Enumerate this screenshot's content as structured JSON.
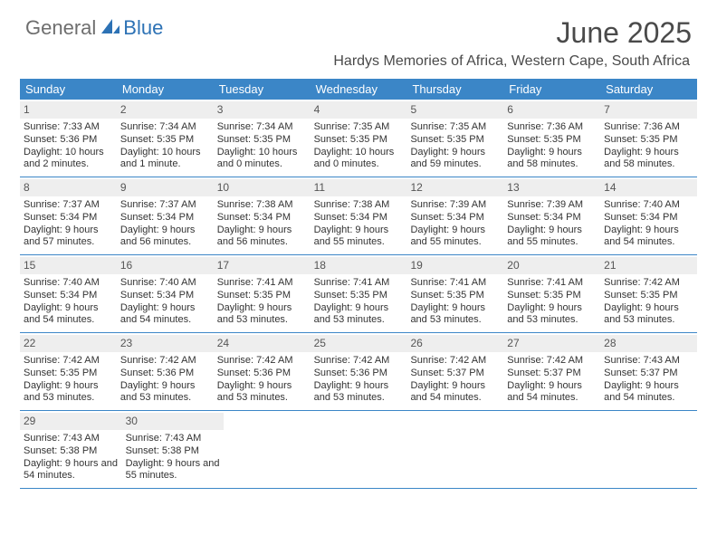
{
  "logo": {
    "general": "General",
    "blue": "Blue"
  },
  "title": "June 2025",
  "location": "Hardys Memories of Africa, Western Cape, South Africa",
  "colors": {
    "header_bg": "#3b86c7",
    "header_text": "#ffffff",
    "daynum_bg": "#eeeeee",
    "border": "#3b86c7",
    "text": "#333333",
    "logo_gray": "#6e6e6e",
    "logo_blue": "#2d72b5"
  },
  "weekdays": [
    "Sunday",
    "Monday",
    "Tuesday",
    "Wednesday",
    "Thursday",
    "Friday",
    "Saturday"
  ],
  "weeks": [
    [
      {
        "n": "1",
        "sr": "Sunrise: 7:33 AM",
        "ss": "Sunset: 5:36 PM",
        "dl": "Daylight: 10 hours and 2 minutes."
      },
      {
        "n": "2",
        "sr": "Sunrise: 7:34 AM",
        "ss": "Sunset: 5:35 PM",
        "dl": "Daylight: 10 hours and 1 minute."
      },
      {
        "n": "3",
        "sr": "Sunrise: 7:34 AM",
        "ss": "Sunset: 5:35 PM",
        "dl": "Daylight: 10 hours and 0 minutes."
      },
      {
        "n": "4",
        "sr": "Sunrise: 7:35 AM",
        "ss": "Sunset: 5:35 PM",
        "dl": "Daylight: 10 hours and 0 minutes."
      },
      {
        "n": "5",
        "sr": "Sunrise: 7:35 AM",
        "ss": "Sunset: 5:35 PM",
        "dl": "Daylight: 9 hours and 59 minutes."
      },
      {
        "n": "6",
        "sr": "Sunrise: 7:36 AM",
        "ss": "Sunset: 5:35 PM",
        "dl": "Daylight: 9 hours and 58 minutes."
      },
      {
        "n": "7",
        "sr": "Sunrise: 7:36 AM",
        "ss": "Sunset: 5:35 PM",
        "dl": "Daylight: 9 hours and 58 minutes."
      }
    ],
    [
      {
        "n": "8",
        "sr": "Sunrise: 7:37 AM",
        "ss": "Sunset: 5:34 PM",
        "dl": "Daylight: 9 hours and 57 minutes."
      },
      {
        "n": "9",
        "sr": "Sunrise: 7:37 AM",
        "ss": "Sunset: 5:34 PM",
        "dl": "Daylight: 9 hours and 56 minutes."
      },
      {
        "n": "10",
        "sr": "Sunrise: 7:38 AM",
        "ss": "Sunset: 5:34 PM",
        "dl": "Daylight: 9 hours and 56 minutes."
      },
      {
        "n": "11",
        "sr": "Sunrise: 7:38 AM",
        "ss": "Sunset: 5:34 PM",
        "dl": "Daylight: 9 hours and 55 minutes."
      },
      {
        "n": "12",
        "sr": "Sunrise: 7:39 AM",
        "ss": "Sunset: 5:34 PM",
        "dl": "Daylight: 9 hours and 55 minutes."
      },
      {
        "n": "13",
        "sr": "Sunrise: 7:39 AM",
        "ss": "Sunset: 5:34 PM",
        "dl": "Daylight: 9 hours and 55 minutes."
      },
      {
        "n": "14",
        "sr": "Sunrise: 7:40 AM",
        "ss": "Sunset: 5:34 PM",
        "dl": "Daylight: 9 hours and 54 minutes."
      }
    ],
    [
      {
        "n": "15",
        "sr": "Sunrise: 7:40 AM",
        "ss": "Sunset: 5:34 PM",
        "dl": "Daylight: 9 hours and 54 minutes."
      },
      {
        "n": "16",
        "sr": "Sunrise: 7:40 AM",
        "ss": "Sunset: 5:34 PM",
        "dl": "Daylight: 9 hours and 54 minutes."
      },
      {
        "n": "17",
        "sr": "Sunrise: 7:41 AM",
        "ss": "Sunset: 5:35 PM",
        "dl": "Daylight: 9 hours and 53 minutes."
      },
      {
        "n": "18",
        "sr": "Sunrise: 7:41 AM",
        "ss": "Sunset: 5:35 PM",
        "dl": "Daylight: 9 hours and 53 minutes."
      },
      {
        "n": "19",
        "sr": "Sunrise: 7:41 AM",
        "ss": "Sunset: 5:35 PM",
        "dl": "Daylight: 9 hours and 53 minutes."
      },
      {
        "n": "20",
        "sr": "Sunrise: 7:41 AM",
        "ss": "Sunset: 5:35 PM",
        "dl": "Daylight: 9 hours and 53 minutes."
      },
      {
        "n": "21",
        "sr": "Sunrise: 7:42 AM",
        "ss": "Sunset: 5:35 PM",
        "dl": "Daylight: 9 hours and 53 minutes."
      }
    ],
    [
      {
        "n": "22",
        "sr": "Sunrise: 7:42 AM",
        "ss": "Sunset: 5:35 PM",
        "dl": "Daylight: 9 hours and 53 minutes."
      },
      {
        "n": "23",
        "sr": "Sunrise: 7:42 AM",
        "ss": "Sunset: 5:36 PM",
        "dl": "Daylight: 9 hours and 53 minutes."
      },
      {
        "n": "24",
        "sr": "Sunrise: 7:42 AM",
        "ss": "Sunset: 5:36 PM",
        "dl": "Daylight: 9 hours and 53 minutes."
      },
      {
        "n": "25",
        "sr": "Sunrise: 7:42 AM",
        "ss": "Sunset: 5:36 PM",
        "dl": "Daylight: 9 hours and 53 minutes."
      },
      {
        "n": "26",
        "sr": "Sunrise: 7:42 AM",
        "ss": "Sunset: 5:37 PM",
        "dl": "Daylight: 9 hours and 54 minutes."
      },
      {
        "n": "27",
        "sr": "Sunrise: 7:42 AM",
        "ss": "Sunset: 5:37 PM",
        "dl": "Daylight: 9 hours and 54 minutes."
      },
      {
        "n": "28",
        "sr": "Sunrise: 7:43 AM",
        "ss": "Sunset: 5:37 PM",
        "dl": "Daylight: 9 hours and 54 minutes."
      }
    ],
    [
      {
        "n": "29",
        "sr": "Sunrise: 7:43 AM",
        "ss": "Sunset: 5:38 PM",
        "dl": "Daylight: 9 hours and 54 minutes."
      },
      {
        "n": "30",
        "sr": "Sunrise: 7:43 AM",
        "ss": "Sunset: 5:38 PM",
        "dl": "Daylight: 9 hours and 55 minutes."
      },
      null,
      null,
      null,
      null,
      null
    ]
  ]
}
